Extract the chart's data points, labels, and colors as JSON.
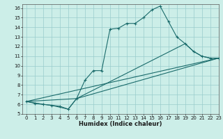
{
  "title": "",
  "xlabel": "Humidex (Indice chaleur)",
  "ylabel": "",
  "background_color": "#cceee8",
  "grid_color": "#99cccc",
  "line_color": "#1a6b6b",
  "xlim": [
    -0.5,
    23
  ],
  "ylim": [
    5,
    16.4
  ],
  "xticks": [
    0,
    1,
    2,
    3,
    4,
    5,
    6,
    7,
    8,
    9,
    10,
    11,
    12,
    13,
    14,
    15,
    16,
    17,
    18,
    19,
    20,
    21,
    22,
    23
  ],
  "yticks": [
    5,
    6,
    7,
    8,
    9,
    10,
    11,
    12,
    13,
    14,
    15,
    16
  ],
  "line1_x": [
    0,
    1,
    2,
    3,
    4,
    5,
    6,
    7,
    8,
    9,
    10,
    11,
    12,
    13,
    14,
    15,
    16,
    17,
    18,
    19,
    20,
    21,
    22,
    23
  ],
  "line1_y": [
    6.3,
    6.1,
    6.0,
    5.9,
    5.8,
    5.5,
    6.6,
    8.5,
    9.5,
    9.5,
    13.8,
    13.9,
    14.4,
    14.4,
    15.0,
    15.8,
    16.2,
    14.6,
    13.0,
    12.3,
    11.5,
    11.0,
    10.8,
    10.8
  ],
  "line2_x": [
    0,
    2,
    3,
    5,
    6,
    19,
    20,
    21,
    22,
    23
  ],
  "line2_y": [
    6.3,
    6.0,
    5.9,
    5.5,
    6.6,
    12.3,
    11.5,
    11.0,
    10.8,
    10.8
  ],
  "line3_x": [
    0,
    23
  ],
  "line3_y": [
    6.3,
    10.8
  ],
  "line4_x": [
    0,
    6,
    23
  ],
  "line4_y": [
    6.3,
    6.6,
    10.8
  ],
  "tick_fontsize": 5.0,
  "xlabel_fontsize": 6.0
}
